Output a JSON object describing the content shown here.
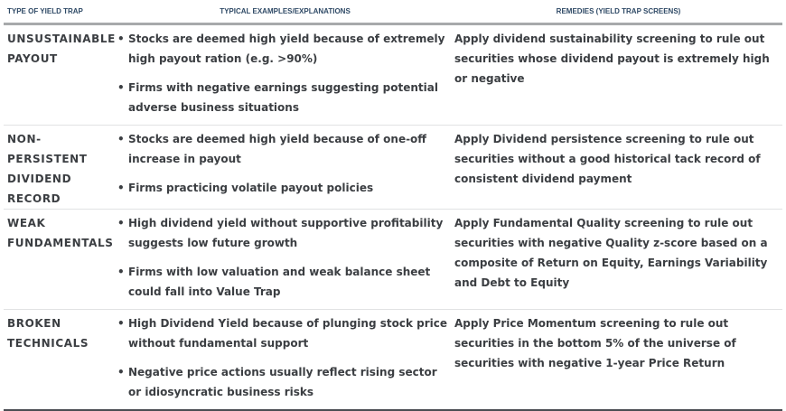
{
  "headers": [
    "TYPE OF YIELD TRAP",
    "TYPICAL EXAMPLES/EXPLANATIONS",
    "REMEDIES (YIELD TRAP SCREENS)"
  ],
  "rows": [
    {
      "type": "UNSUSTAINABLE PAYOUT",
      "examples": [
        "Stocks are deemed high yield because of extremely high payout ration (e.g. >90%)",
        "Firms with negative earnings suggesting potential adverse business situations"
      ],
      "remedy": "Apply dividend sustainability screening to rule out securities whose dividend payout is extremely high or negative"
    },
    {
      "type": "NON-PERSISTENT DIVIDEND RECORD",
      "examples": [
        "Stocks are deemed high yield because of one-off increase in payout",
        "Firms practicing volatile payout policies"
      ],
      "remedy": "Apply Dividend persistence screening to rule out securities without a good historical tack record of consistent dividend payment"
    },
    {
      "type": "WEAK FUNDAMENTALS",
      "examples": [
        "High dividend yield without supportive profitability suggests low future growth",
        "Firms with low valuation and weak balance sheet could fall into Value Trap"
      ],
      "remedy": "Apply Fundamental Quality screening to rule out securities with negative Quality z-score based on a composite of Return on Equity, Earnings Variability and Debt to Equity"
    },
    {
      "type": "BROKEN TECHNICALS",
      "examples": [
        "High Dividend Yield because of plunging stock price without fundamental support",
        "Negative price actions usually reflect rising sector or idiosyncratic business risks"
      ],
      "remedy": "Apply Price Momentum screening to rule out securities in the bottom 5% of the universe of securities with negative 1-year Price Return"
    }
  ],
  "bullet": "•"
}
